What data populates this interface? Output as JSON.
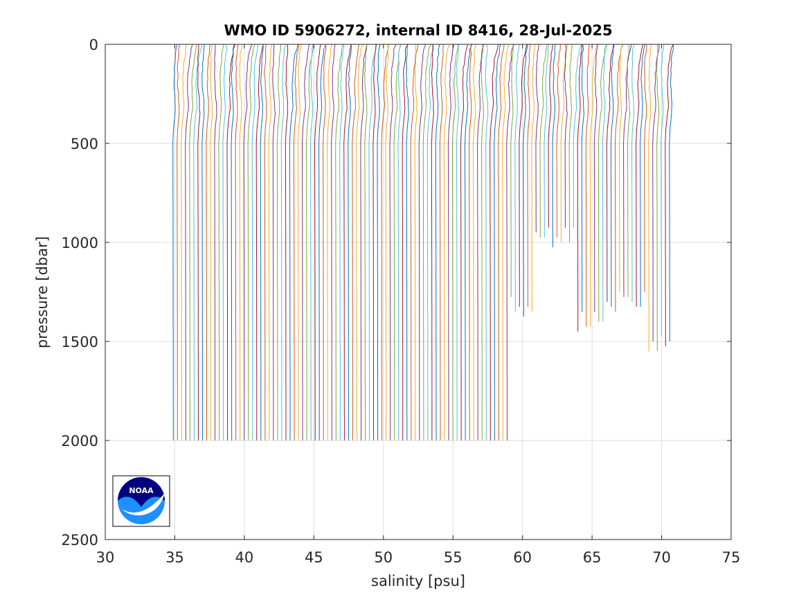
{
  "chart_data": {
    "type": "line",
    "title": "WMO ID 5906272, internal ID 8416, 28-Jul-2025",
    "xlabel": "salinity [psu]",
    "ylabel": "pressure [dbar]",
    "xlim": [
      30,
      75
    ],
    "ylim": [
      0,
      2500
    ],
    "y_reversed": true,
    "grid": true,
    "x_ticks": [
      "30",
      "35",
      "40",
      "45",
      "50",
      "55",
      "60",
      "65",
      "70",
      "75"
    ],
    "y_ticks": [
      "0",
      "500",
      "1000",
      "1500",
      "2000",
      "2500"
    ],
    "profile_count": 120,
    "profile_offset_psu": 0.3,
    "deep_salinity_psu": 34.9,
    "typical_max_pressure_dbar": 2000,
    "shallow_profiles_max_pressure_dbar": [
      {
        "x_range": [
          59.0,
          61.0
        ],
        "max_pressure": 1350
      },
      {
        "x_range": [
          61.0,
          64.0
        ],
        "max_pressure": 980
      },
      {
        "x_range": [
          64.0,
          66.0
        ],
        "max_pressure": 1400
      },
      {
        "x_range": [
          66.0,
          69.0
        ],
        "max_pressure": 1300
      },
      {
        "x_range": [
          69.0,
          71.2
        ],
        "max_pressure": 1500
      }
    ],
    "series_colors": [
      "#0072BD",
      "#D95319",
      "#EDB120",
      "#7E2F8E",
      "#77AC30",
      "#4DBEEE",
      "#A2142F"
    ]
  },
  "logo": {
    "label": "NOAA",
    "colors": {
      "dark_blue": "#000080",
      "light_blue": "#1E90FF",
      "white": "#ffffff"
    }
  }
}
